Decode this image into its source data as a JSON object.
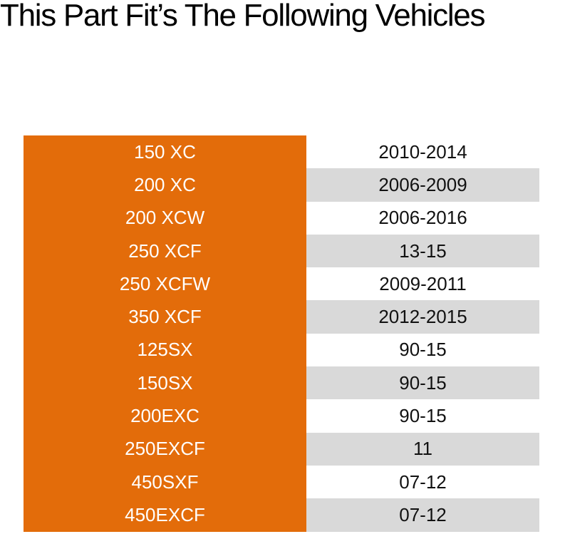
{
  "header": {
    "title": "This Part Fit’s The Following Vehicles"
  },
  "table": {
    "rows": [
      [
        "150 XC",
        "2010-2014"
      ],
      [
        "200 XC",
        "2006-2009"
      ],
      [
        "200 XCW",
        "2006-2016"
      ],
      [
        "250 XCF",
        "13-15"
      ],
      [
        "250 XCFW",
        "2009-2011"
      ],
      [
        "350 XCF",
        "2012-2015"
      ],
      [
        "125SX",
        "90-15"
      ],
      [
        "150SX",
        "90-15"
      ],
      [
        "200EXC",
        "90-15"
      ],
      [
        "250EXCF",
        "11"
      ],
      [
        "450SXF",
        "07-12"
      ],
      [
        "450EXCF",
        "07-12"
      ]
    ]
  }
}
